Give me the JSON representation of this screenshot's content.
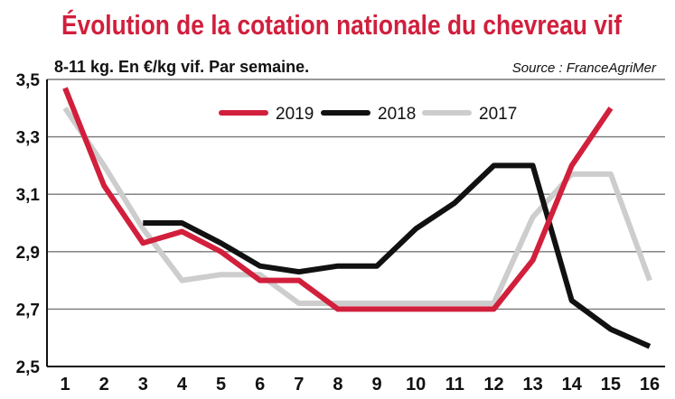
{
  "chart_data": {
    "type": "line",
    "title": "Évolution de la cotation nationale du chevreau vif",
    "subtitle": "8-11 kg. En €/kg vif. Par semaine.",
    "source": "Source : FranceAgriMer",
    "x": [
      1,
      2,
      3,
      4,
      5,
      6,
      7,
      8,
      9,
      10,
      11,
      12,
      13,
      14,
      15,
      16
    ],
    "xticks": [
      "1",
      "2",
      "3",
      "4",
      "5",
      "6",
      "7",
      "8",
      "9",
      "10",
      "11",
      "12",
      "13",
      "14",
      "15",
      "16"
    ],
    "yticks": [
      "2,5",
      "2,7",
      "2,9",
      "3,1",
      "3,3",
      "3,5"
    ],
    "ylim": [
      2.5,
      3.5
    ],
    "grid": "horizontal",
    "legend_position": "top-center",
    "series": [
      {
        "name": "2019",
        "color": "#d11f3c",
        "values": [
          3.47,
          3.13,
          2.93,
          2.97,
          2.9,
          2.8,
          2.8,
          2.7,
          2.7,
          2.7,
          2.7,
          2.7,
          2.87,
          3.2,
          3.4,
          null
        ]
      },
      {
        "name": "2018",
        "color": "#111111",
        "values": [
          null,
          null,
          3.0,
          3.0,
          2.93,
          2.85,
          2.83,
          2.85,
          2.85,
          2.98,
          3.07,
          3.2,
          3.2,
          2.73,
          2.63,
          2.57
        ]
      },
      {
        "name": "2017",
        "color": "#cdcdcd",
        "values": [
          3.4,
          3.2,
          2.98,
          2.8,
          2.82,
          2.82,
          2.72,
          2.72,
          2.72,
          2.72,
          2.72,
          2.72,
          3.02,
          3.17,
          3.17,
          2.8
        ]
      }
    ]
  }
}
